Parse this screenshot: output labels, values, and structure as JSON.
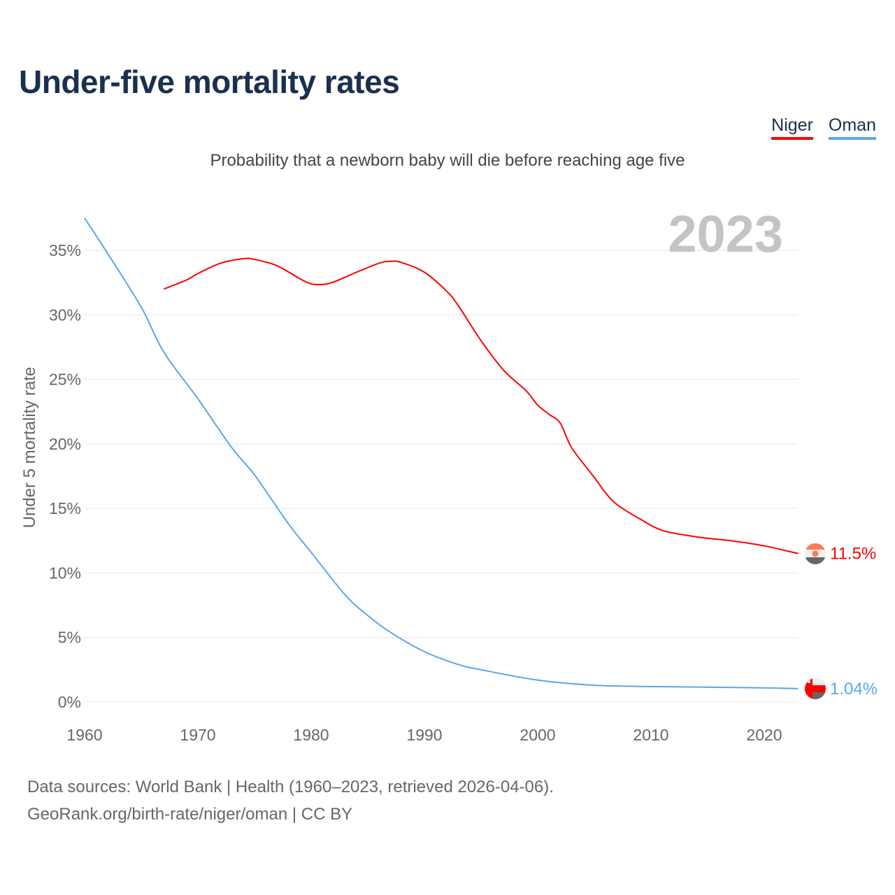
{
  "title": "Under-five mortality rates",
  "subtitle": "Probability that a newborn baby will die before reaching age five",
  "legend": [
    {
      "label": "Niger",
      "color": "#ff0000"
    },
    {
      "label": "Oman",
      "color": "#5aa6ec"
    }
  ],
  "year_label": "2023",
  "footer": {
    "line1": "Data sources: World Bank | Health (1960–2023, retrieved 2026-04-06).",
    "line2": "GeoRank.org/birth-rate/niger/oman | CC BY"
  },
  "chart_data": {
    "type": "line",
    "title": "Under-five mortality rates",
    "xlabel": "",
    "ylabel": "Under 5 mortality rate",
    "xlim": [
      1960,
      2023
    ],
    "ylim": [
      0,
      37.5
    ],
    "xticks": [
      1960,
      1970,
      1980,
      1990,
      2000,
      2010,
      2020
    ],
    "yticks": [
      0,
      5,
      10,
      15,
      20,
      25,
      30,
      35
    ],
    "ytick_labels": [
      "0%",
      "5%",
      "10%",
      "15%",
      "20%",
      "25%",
      "30%",
      "35%"
    ],
    "grid": true,
    "series": [
      {
        "name": "Niger",
        "color": "#ff0000",
        "end_label": "11.5%",
        "x": [
          1967,
          1969,
          1970,
          1972,
          1974,
          1975,
          1977,
          1979,
          1980,
          1981,
          1982,
          1984,
          1986,
          1987,
          1988,
          1990,
          1992,
          1993,
          1995,
          1997,
          1999,
          2000,
          2001,
          2002,
          2003,
          2005,
          2006,
          2007,
          2009,
          2011,
          2014,
          2017,
          2020,
          2023
        ],
        "y": [
          32.0,
          32.7,
          33.2,
          34.0,
          34.35,
          34.3,
          33.8,
          32.8,
          32.4,
          32.35,
          32.55,
          33.3,
          34.0,
          34.15,
          34.05,
          33.3,
          31.8,
          30.7,
          28.0,
          25.7,
          24.1,
          23.0,
          22.3,
          21.6,
          19.7,
          17.4,
          16.2,
          15.3,
          14.2,
          13.3,
          12.8,
          12.5,
          12.1,
          11.5
        ]
      },
      {
        "name": "Oman",
        "color": "#5aa6ec",
        "end_label": "1.04%",
        "x": [
          1960,
          1962,
          1965,
          1967,
          1970,
          1973,
          1975,
          1978,
          1980,
          1983,
          1985,
          1987,
          1990,
          1993,
          1995,
          2000,
          2005,
          2010,
          2015,
          2020,
          2023
        ],
        "y": [
          37.5,
          34.8,
          30.6,
          27.1,
          23.5,
          19.7,
          17.6,
          13.8,
          11.6,
          8.3,
          6.7,
          5.4,
          3.9,
          2.9,
          2.5,
          1.7,
          1.3,
          1.2,
          1.15,
          1.1,
          1.04
        ]
      }
    ]
  }
}
